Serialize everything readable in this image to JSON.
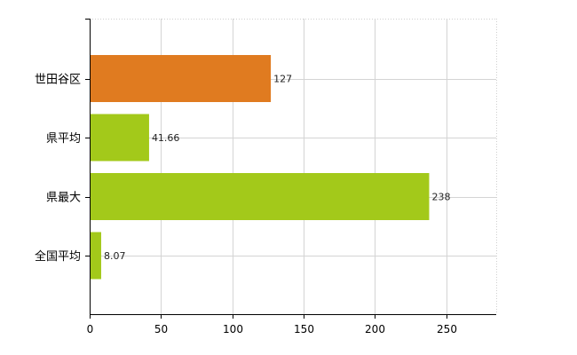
{
  "chart_data": {
    "type": "bar",
    "orientation": "horizontal",
    "categories": [
      "世田谷区",
      "県平均",
      "県最大",
      "全国平均"
    ],
    "values": [
      127,
      41.66,
      238,
      8.07
    ],
    "value_labels": [
      "127",
      "41.66",
      "238",
      "8.07"
    ],
    "bar_colors": [
      "#e07b20",
      "#a3c91a",
      "#a3c91a",
      "#a3c91a"
    ],
    "xlim": [
      0,
      285
    ],
    "x_ticks": [
      0,
      50,
      100,
      150,
      200,
      250
    ],
    "x_tick_labels": [
      "0",
      "50",
      "100",
      "150",
      "200",
      "250"
    ],
    "grid": true,
    "title": "",
    "xlabel": "",
    "ylabel": ""
  }
}
